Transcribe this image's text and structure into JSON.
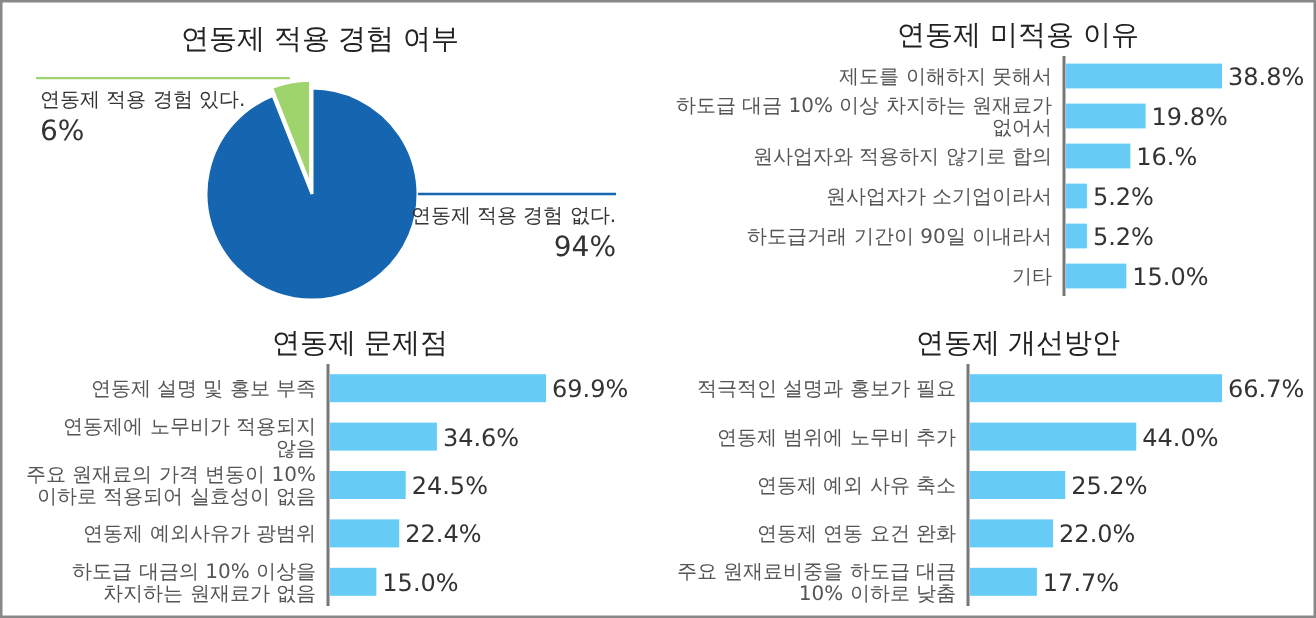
{
  "chart_data": [
    {
      "type": "pie",
      "title": "연동제 적용 경험 여부",
      "categories": [
        "연동제 적용 경험 없다.",
        "연동제 적용 경험 있다."
      ],
      "values": [
        94,
        6
      ],
      "colors": [
        "#1565b0",
        "#9fd36b"
      ],
      "value_labels": [
        "94%",
        "6%"
      ]
    },
    {
      "type": "bar",
      "orientation": "horizontal",
      "title": "연동제 미적용 이유",
      "categories": [
        "제도를 이해하지 못해서",
        "하도급 대금 10% 이상 차지하는 원재료가 없어서",
        "원사업자와 적용하지 않기로 합의",
        "원사업자가 소기업이라서",
        "하도급거래 기간이 90일 이내라서",
        "기타"
      ],
      "values": [
        38.8,
        19.8,
        16,
        5.2,
        5.2,
        15.0
      ],
      "value_labels": [
        "38.8%",
        "19.8%",
        "16.%",
        "5.2%",
        "5.2%",
        "15.0%"
      ],
      "color": "#66ccf5"
    },
    {
      "type": "bar",
      "orientation": "horizontal",
      "title": "연동제 문제점",
      "categories": [
        "연동제 설명 및 홍보 부족",
        "연동제에 노무비가 적용되지 않음",
        "주요 원재료의 가격 변동이 10% 이하로 적용되어 실효성이 없음",
        "연동제 예외사유가 광범위",
        "하도급 대금의 10% 이상을 차지하는 원재료가 없음"
      ],
      "values": [
        69.9,
        34.6,
        24.5,
        22.4,
        15.0
      ],
      "value_labels": [
        "69.9%",
        "34.6%",
        "24.5%",
        "22.4%",
        "15.0%"
      ],
      "color": "#66ccf5"
    },
    {
      "type": "bar",
      "orientation": "horizontal",
      "title": "연동제 개선방안",
      "categories": [
        "적극적인 설명과 홍보가 필요",
        "연동제 범위에 노무비 추가",
        "연동제 예외 사유 축소",
        "연동제 연동 요건 완화",
        "주요 원재료비중을 하도급 대금 10% 이하로 낮춤"
      ],
      "values": [
        66.7,
        44.0,
        25.2,
        22.0,
        17.7
      ],
      "value_labels": [
        "66.7%",
        "44.0%",
        "25.2%",
        "22.0%",
        "17.7%"
      ],
      "color": "#66ccf5"
    }
  ]
}
